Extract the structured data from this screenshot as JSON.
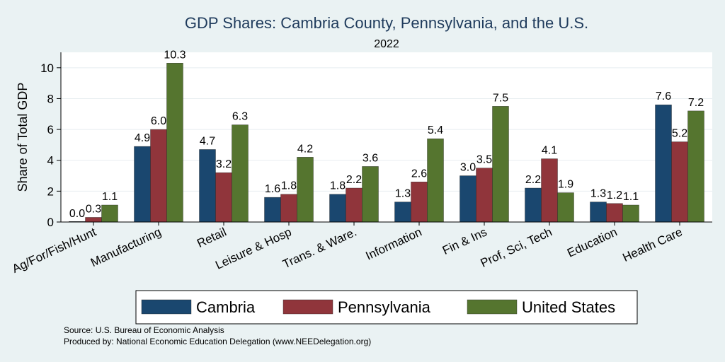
{
  "chart_data": {
    "type": "bar",
    "title": "GDP Shares: Cambria County, Pennsylvania, and the U.S.",
    "subtitle": "2022",
    "ylabel": "Share of Total GDP",
    "xlabel": "",
    "ylim": [
      0,
      11
    ],
    "yticks": [
      0,
      2,
      4,
      6,
      8,
      10
    ],
    "grid": true,
    "legend_position": "bottom",
    "categories": [
      "Ag/For/Fish/Hunt",
      "Manufacturing",
      "Retail",
      "Leisure & Hosp",
      "Trans. & Ware.",
      "Information",
      "Fin & Ins",
      "Prof, Sci, Tech",
      "Education",
      "Health Care"
    ],
    "series": [
      {
        "name": "Cambria",
        "color": "#1a476f",
        "values": [
          0.0,
          4.9,
          4.7,
          1.6,
          1.8,
          1.3,
          3.0,
          2.2,
          1.3,
          7.6
        ],
        "labels": [
          "0.0",
          "4.9",
          "4.7",
          "1.6",
          "1.8",
          "1.3",
          "3.0",
          "2.2",
          "1.3",
          "7.6"
        ]
      },
      {
        "name": "Pennsylvania",
        "color": "#90353b",
        "values": [
          0.3,
          6.0,
          3.2,
          1.8,
          2.2,
          2.6,
          3.5,
          4.1,
          1.2,
          5.2
        ],
        "labels": [
          "0.3",
          "6.0",
          "3.2",
          "1.8",
          "2.2",
          "2.6",
          "3.5",
          "4.1",
          "1.2",
          "5.2"
        ]
      },
      {
        "name": "United States",
        "color": "#55752f",
        "values": [
          1.1,
          10.3,
          6.3,
          4.2,
          3.6,
          5.4,
          7.5,
          1.9,
          1.1,
          7.2
        ],
        "labels": [
          "1.1",
          "10.3",
          "6.3",
          "4.2",
          "3.6",
          "5.4",
          "7.5",
          "1.9",
          "1.1",
          "7.2"
        ]
      }
    ]
  },
  "notes": {
    "source": "Source: U.S. Bureau of Economic Analysis",
    "produced": "Produced by: National Economic Education Delegation (www.NEEDelegation.org)"
  }
}
